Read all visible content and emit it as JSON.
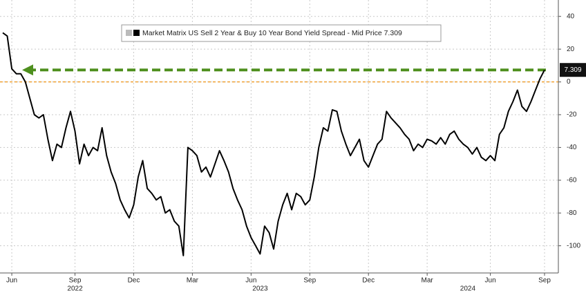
{
  "chart_data": {
    "type": "line",
    "categories": [
      null,
      null,
      "Jun",
      null,
      null,
      null,
      null,
      null,
      null,
      null,
      null,
      null,
      null,
      null,
      null,
      null,
      "Sep",
      null,
      null,
      null,
      null,
      null,
      null,
      null,
      null,
      null,
      null,
      null,
      null,
      "Dec",
      null,
      null,
      null,
      null,
      null,
      null,
      null,
      null,
      null,
      null,
      null,
      null,
      "Mar",
      null,
      null,
      null,
      null,
      null,
      null,
      null,
      null,
      null,
      null,
      null,
      null,
      "Jun",
      null,
      null,
      null,
      null,
      null,
      null,
      null,
      null,
      null,
      null,
      null,
      null,
      "Sep",
      null,
      null,
      null,
      null,
      null,
      null,
      null,
      null,
      null,
      null,
      null,
      null,
      "Dec",
      null,
      null,
      null,
      null,
      null,
      null,
      null,
      null,
      null,
      null,
      null,
      null,
      "Mar",
      null,
      null,
      null,
      null,
      null,
      null,
      null,
      null,
      null,
      null,
      null,
      null,
      null,
      "Jun",
      null,
      null,
      null,
      null,
      null,
      null,
      null,
      null,
      null,
      null,
      null,
      "Sep"
    ],
    "years": [
      "2022",
      "2023",
      "2024"
    ],
    "series": [
      {
        "name": "Market Matrix US Sell 2 Year & Buy 10 Year Bond Yield Spread - Mid Price 7.309",
        "color": "#000000",
        "values": [
          30,
          28,
          8,
          5,
          5,
          0,
          -10,
          -20,
          -22,
          -20,
          -35,
          -48,
          -38,
          -40,
          -28,
          -18,
          -30,
          -50,
          -38,
          -45,
          -40,
          -42,
          -28,
          -45,
          -55,
          -62,
          -72,
          -78,
          -83,
          -75,
          -58,
          -48,
          -65,
          -68,
          -72,
          -70,
          -80,
          -78,
          -85,
          -88,
          -106,
          -40,
          -42,
          -45,
          -55,
          -52,
          -58,
          -50,
          -42,
          -48,
          -55,
          -65,
          -72,
          -78,
          -88,
          -95,
          -100,
          -105,
          -88,
          -92,
          -102,
          -85,
          -75,
          -68,
          -78,
          -68,
          -70,
          -75,
          -72,
          -58,
          -40,
          -28,
          -30,
          -17,
          -18,
          -30,
          -38,
          -45,
          -40,
          -35,
          -48,
          -52,
          -45,
          -38,
          -35,
          -18,
          -22,
          -25,
          -28,
          -32,
          -35,
          -42,
          -38,
          -40,
          -35,
          -36,
          -38,
          -34,
          -38,
          -32,
          -30,
          -35,
          -38,
          -40,
          -44,
          -40,
          -46,
          -48,
          -45,
          -48,
          -32,
          -28,
          -18,
          -12,
          -5,
          -15,
          -18,
          -12,
          -5,
          2,
          7.309
        ]
      }
    ],
    "ylim": [
      -116.6,
      50
    ],
    "yticks": [
      40,
      20,
      0,
      -20,
      -40,
      -60,
      -80,
      -100
    ],
    "grid": true,
    "legend_position": "top",
    "reference_lines": [
      {
        "value": 0,
        "color": "#f0a030"
      },
      {
        "value": 7.309,
        "color": "#4e8f1e",
        "arrow": true
      }
    ]
  }
}
